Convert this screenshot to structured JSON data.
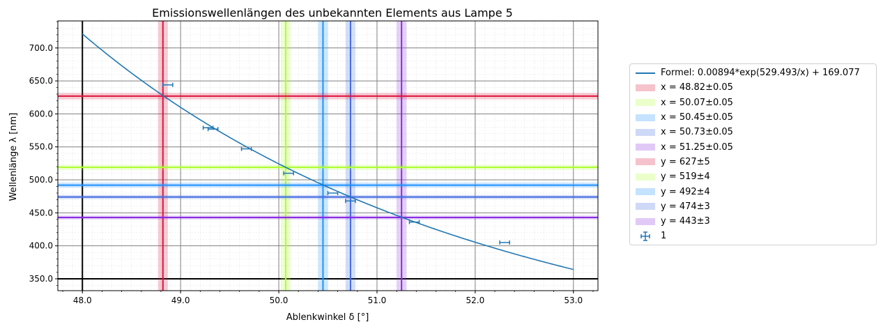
{
  "chart_data": {
    "type": "scatter",
    "title": "Emissionswellenlängen des unbekannten Elements aus Lampe 5",
    "xlabel": "Ablenkwinkel δ [°]",
    "ylabel": "Wellenlänge λ [nm]",
    "xlim": [
      47.75,
      53.25
    ],
    "ylim": [
      332,
      741
    ],
    "x_ticks": [
      "48.0",
      "49.0",
      "50.0",
      "51.0",
      "52.0",
      "53.0"
    ],
    "y_ticks": [
      "350.0",
      "400.0",
      "450.0",
      "500.0",
      "550.0",
      "600.0",
      "650.0",
      "700.0"
    ],
    "grid": true,
    "legend_position": "outside-right",
    "fit": {
      "name": "Formel: 0.00894*exp(529.493/x) + 169.077",
      "formula": {
        "a": 0.00894,
        "b": 529.493,
        "c": 169.077
      },
      "x_range": [
        48.0,
        53.0
      ],
      "color": "#1f77b4"
    },
    "data_points": {
      "name": "1",
      "color": "#1f77b4",
      "points": [
        {
          "x": 48.87,
          "y": 644,
          "xerr": 0.05
        },
        {
          "x": 49.28,
          "y": 579,
          "xerr": 0.05
        },
        {
          "x": 49.33,
          "y": 577,
          "xerr": 0.05
        },
        {
          "x": 49.67,
          "y": 547,
          "xerr": 0.05
        },
        {
          "x": 50.1,
          "y": 510,
          "xerr": 0.05
        },
        {
          "x": 50.55,
          "y": 480,
          "xerr": 0.05
        },
        {
          "x": 50.73,
          "y": 468,
          "xerr": 0.05
        },
        {
          "x": 51.38,
          "y": 436,
          "xerr": 0.05
        },
        {
          "x": 52.3,
          "y": 405,
          "xerr": 0.05
        }
      ]
    },
    "vertical_bands": [
      {
        "label": "x = 48.82±0.05",
        "value": 48.82,
        "err": 0.05,
        "color": "#dc143c"
      },
      {
        "label": "x = 50.07±0.05",
        "value": 50.07,
        "err": 0.05,
        "color": "#adff2f"
      },
      {
        "label": "x = 50.45±0.05",
        "value": 50.45,
        "err": 0.05,
        "color": "#1e90ff"
      },
      {
        "label": "x = 50.73±0.05",
        "value": 50.73,
        "err": 0.05,
        "color": "#4169e1"
      },
      {
        "label": "x = 51.25±0.05",
        "value": 51.25,
        "err": 0.05,
        "color": "#8a2be2"
      }
    ],
    "horizontal_bands": [
      {
        "label": "y = 627±5",
        "value": 627,
        "err": 5,
        "color": "#dc143c"
      },
      {
        "label": "y = 519±4",
        "value": 519,
        "err": 4,
        "color": "#adff2f"
      },
      {
        "label": "y = 492±4",
        "value": 492,
        "err": 4,
        "color": "#1e90ff"
      },
      {
        "label": "y = 474±3",
        "value": 474,
        "err": 3,
        "color": "#4169e1"
      },
      {
        "label": "y = 443±3",
        "value": 443,
        "err": 3,
        "color": "#8a2be2"
      }
    ]
  }
}
